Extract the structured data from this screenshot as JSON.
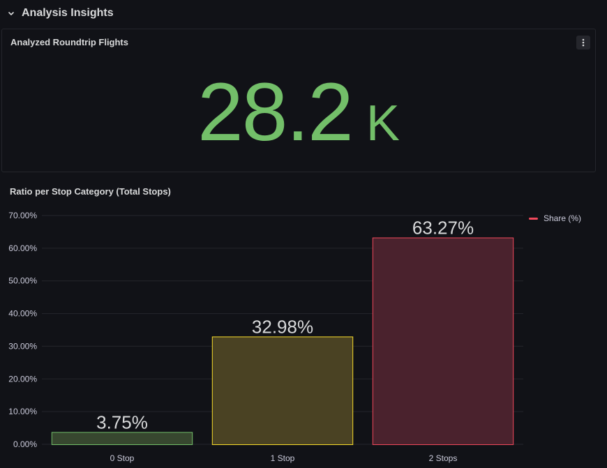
{
  "row": {
    "title": "Analysis Insights"
  },
  "stat_panel": {
    "title": "Analyzed Roundtrip Flights",
    "value": "28.2",
    "unit": "K",
    "value_color": "#73bf69"
  },
  "chart_panel": {
    "title": "Ratio per Stop Category (Total Stops)",
    "legend": [
      {
        "name": "Share (%)",
        "color": "#f2495c"
      }
    ]
  },
  "chart_data": {
    "type": "bar",
    "title": "Ratio per Stop Category (Total Stops)",
    "categories": [
      "0 Stop",
      "1 Stop",
      "2 Stops"
    ],
    "series": [
      {
        "name": "Share (%)",
        "values": [
          3.75,
          32.98,
          63.27
        ],
        "value_labels": [
          "3.75%",
          "32.98%",
          "63.27%"
        ]
      }
    ],
    "bar_colors": [
      {
        "fill": "#37472f",
        "stroke": "#73bf69"
      },
      {
        "fill": "#4a4223",
        "stroke": "#fade2a"
      },
      {
        "fill": "#4a222d",
        "stroke": "#f2495c"
      }
    ],
    "ylim": [
      0,
      70
    ],
    "yticks": [
      0,
      10,
      20,
      30,
      40,
      50,
      60,
      70
    ],
    "ytick_labels": [
      "0.00%",
      "10.00%",
      "20.00%",
      "30.00%",
      "40.00%",
      "50.00%",
      "60.00%",
      "70.00%"
    ],
    "grid": true,
    "legend_position": "top-right"
  }
}
